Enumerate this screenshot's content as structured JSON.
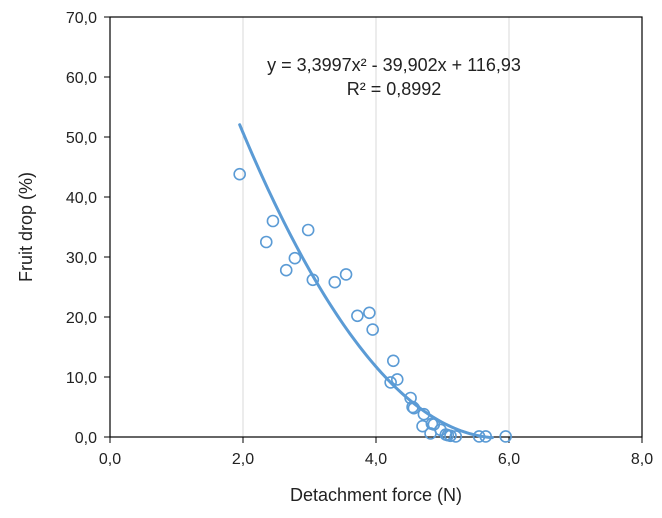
{
  "chart_data": {
    "type": "scatter",
    "xlabel": "Detachment force (N)",
    "ylabel": "Fruit drop (%)",
    "xlim": [
      0,
      8
    ],
    "ylim": [
      0,
      70
    ],
    "x_ticks": [
      "0,0",
      "2,0",
      "4,0",
      "6,0",
      "8,0"
    ],
    "y_ticks": [
      "0,0",
      "10,0",
      "20,0",
      "30,0",
      "40,0",
      "50,0",
      "60,0",
      "70,0"
    ],
    "grid": "vertical",
    "series": [
      {
        "marker": "hollow-circle",
        "color": "#5b9bd5",
        "points": [
          [
            1.95,
            43.8
          ],
          [
            2.35,
            32.5
          ],
          [
            2.45,
            36.0
          ],
          [
            2.65,
            27.8
          ],
          [
            2.78,
            29.8
          ],
          [
            2.98,
            34.5
          ],
          [
            3.05,
            26.2
          ],
          [
            3.38,
            25.8
          ],
          [
            3.55,
            27.1
          ],
          [
            3.72,
            20.2
          ],
          [
            3.9,
            20.7
          ],
          [
            3.95,
            17.9
          ],
          [
            4.22,
            9.1
          ],
          [
            4.26,
            12.7
          ],
          [
            4.32,
            9.6
          ],
          [
            4.52,
            6.5
          ],
          [
            4.55,
            5.0
          ],
          [
            4.57,
            4.8
          ],
          [
            4.7,
            1.8
          ],
          [
            4.72,
            3.8
          ],
          [
            4.82,
            0.6
          ],
          [
            4.84,
            2.2
          ],
          [
            4.87,
            2.1
          ],
          [
            4.97,
            1.2
          ],
          [
            5.05,
            0.4
          ],
          [
            5.08,
            0.3
          ],
          [
            5.12,
            0.2
          ],
          [
            5.2,
            0.1
          ],
          [
            5.55,
            0.1
          ],
          [
            5.65,
            0.1
          ],
          [
            5.95,
            0.1
          ]
        ]
      }
    ],
    "trendline": {
      "type": "polynomial",
      "coefficients": [
        3.3997,
        -39.902,
        116.93
      ],
      "x_range": [
        1.95,
        5.75
      ],
      "color": "#5b9bd5"
    },
    "annotations": [
      "y = 3,3997x² - 39,902x + 116,93",
      "R² = 0,8992"
    ]
  }
}
